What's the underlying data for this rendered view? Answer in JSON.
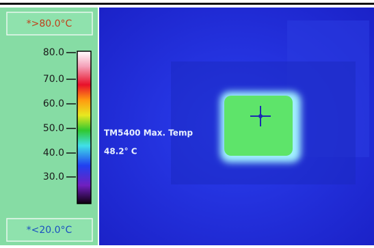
{
  "scale": {
    "over_label": "*>80.0°C",
    "under_label": "*<20.0°C",
    "ticks": [
      "80.0",
      "70.0",
      "60.0",
      "50.0",
      "40.0",
      "30.0"
    ]
  },
  "overlay": {
    "title": "TM5400 Max. Temp",
    "value": "48.2° C"
  }
}
